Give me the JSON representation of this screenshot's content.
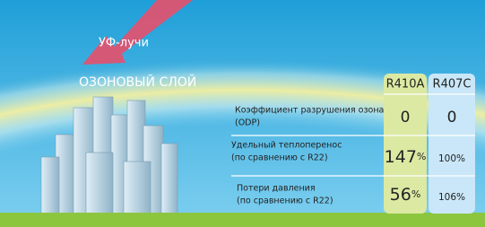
{
  "arrow_label": "УФ-лучи",
  "layer_label": "ОЗОНОВЫЙ СЛОЙ",
  "table": {
    "headers": [
      "R410A",
      "R407C"
    ],
    "rows": [
      {
        "label": [
          "Коэффициент разрушения озона",
          "(ODP)"
        ],
        "r410a": {
          "number": "0",
          "unit": ""
        },
        "r407c": "0"
      },
      {
        "label": [
          "Удельный теплоперенос",
          "(по сравнению с R22)"
        ],
        "r410a": {
          "number": "147",
          "unit": "%"
        },
        "r407c": "100%"
      },
      {
        "label": [
          "Потери давления",
          "(по сравнению с R22)"
        ],
        "r410a": {
          "number": "56",
          "unit": "%"
        },
        "r407c": "106%"
      }
    ]
  }
}
